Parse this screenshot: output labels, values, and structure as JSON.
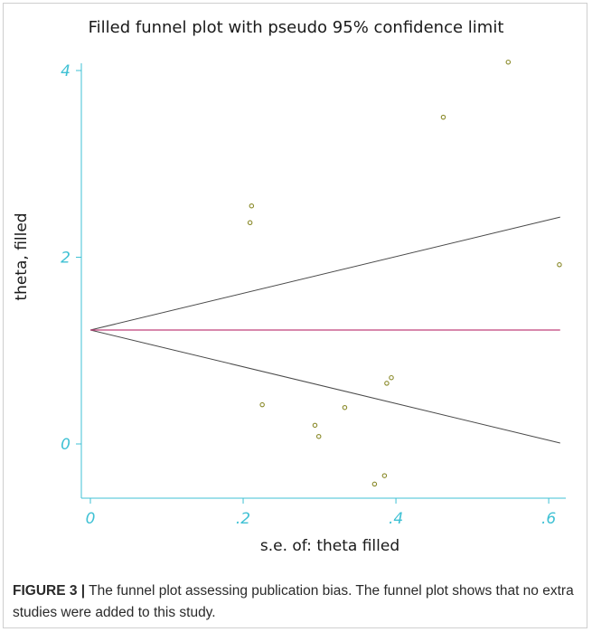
{
  "chart_data": {
    "type": "scatter",
    "title": "Filled funnel plot with pseudo 95% confidence limit",
    "xlabel": "s.e. of: theta filled",
    "ylabel": "theta, filled",
    "xlim": [
      0,
      0.62
    ],
    "ylim": [
      -0.6,
      4.3
    ],
    "x_ticks": [
      0,
      0.2,
      0.4,
      0.6
    ],
    "x_tick_labels": [
      "0",
      ".2",
      ".4",
      ".6"
    ],
    "y_ticks": [
      0,
      2,
      4
    ],
    "y_tick_labels": [
      "0",
      "2",
      "4"
    ],
    "grid": false,
    "points": [
      {
        "x": 0.547,
        "y": 4.09
      },
      {
        "x": 0.462,
        "y": 3.5
      },
      {
        "x": 0.211,
        "y": 2.55
      },
      {
        "x": 0.209,
        "y": 2.37
      },
      {
        "x": 0.614,
        "y": 1.92
      },
      {
        "x": 0.394,
        "y": 0.71
      },
      {
        "x": 0.388,
        "y": 0.65
      },
      {
        "x": 0.225,
        "y": 0.42
      },
      {
        "x": 0.333,
        "y": 0.39
      },
      {
        "x": 0.294,
        "y": 0.2
      },
      {
        "x": 0.299,
        "y": 0.08
      },
      {
        "x": 0.385,
        "y": -0.34
      },
      {
        "x": 0.372,
        "y": -0.43
      }
    ],
    "pooled_estimate": 1.22,
    "funnel_limits": {
      "x_end": 0.615,
      "upper_end": 2.43,
      "lower_end": 0.01
    },
    "colors": {
      "axis": "#3fc1d4",
      "points": "#8a8a2a",
      "funnel_lines": "#4a4a4a",
      "estimate_line": "#c0407a"
    }
  },
  "caption": {
    "label": "FIGURE 3 |",
    "text": " The funnel plot assessing publication bias. The funnel plot shows that no extra studies were added to this study."
  }
}
